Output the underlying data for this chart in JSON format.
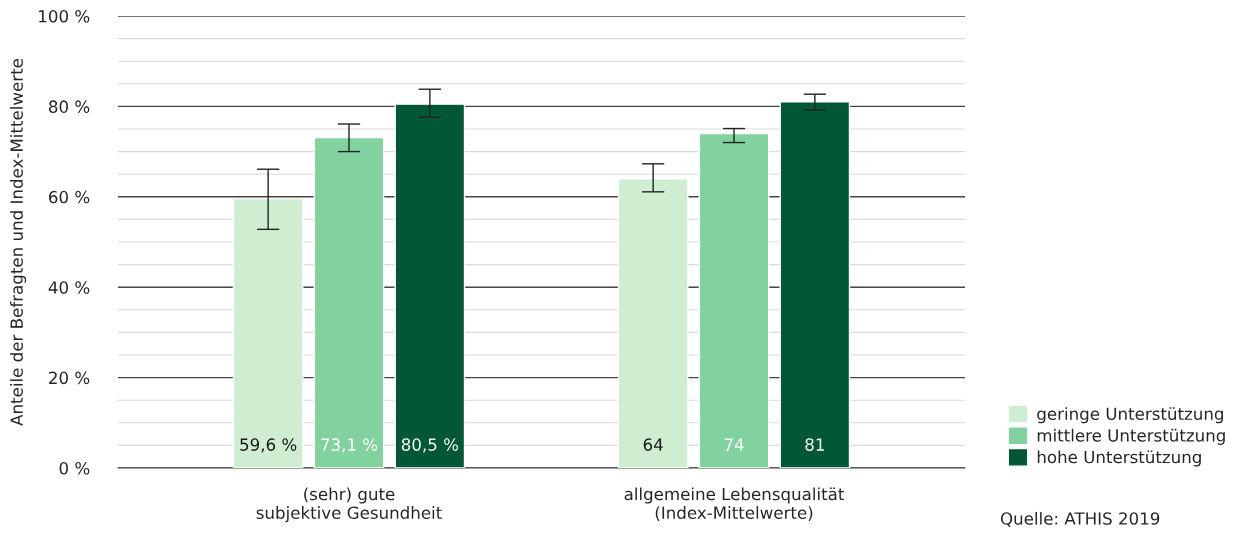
{
  "chart_data": {
    "type": "bar",
    "categories": [
      "(sehr) gute\nsubjektive Gesundheit",
      "allgemeine Lebensqualität\n(Index-Mittelwerte)"
    ],
    "ylabel": "Anteile der Befragten und Index-Mittelwerte",
    "series": [
      {
        "name": "geringe Unterstützung",
        "color": "#cfedd0",
        "values": [
          59.6,
          64
        ],
        "value_labels": [
          "59,6 %",
          "64"
        ],
        "errors": [
          [
            52.8,
            66.1
          ],
          [
            61.1,
            67.3
          ]
        ]
      },
      {
        "name": "mittlere Unterstützung",
        "color": "#82d29f",
        "values": [
          73.1,
          74
        ],
        "value_labels": [
          "73,1 %",
          "74"
        ],
        "errors": [
          [
            70,
            76.1
          ],
          [
            72,
            75.1
          ]
        ]
      },
      {
        "name": "hohe Unterstützung",
        "color": "#025737",
        "values": [
          80.5,
          81
        ],
        "value_labels": [
          "80,5 %",
          "81"
        ],
        "errors": [
          [
            77.6,
            83.8
          ],
          [
            79.2,
            82.7
          ]
        ]
      }
    ],
    "ylim": [
      0,
      100
    ],
    "yticks": [
      {
        "value": 0,
        "label": "0 %"
      },
      {
        "value": 5,
        "label": null
      },
      {
        "value": 10,
        "label": null
      },
      {
        "value": 15,
        "label": null
      },
      {
        "value": 20,
        "label": "20 %"
      },
      {
        "value": 25,
        "label": null
      },
      {
        "value": 30,
        "label": null
      },
      {
        "value": 35,
        "label": null
      },
      {
        "value": 40,
        "label": "40 %"
      },
      {
        "value": 45,
        "label": null
      },
      {
        "value": 50,
        "label": null
      },
      {
        "value": 55,
        "label": null
      },
      {
        "value": 60,
        "label": "60 %"
      },
      {
        "value": 65,
        "label": null
      },
      {
        "value": 70,
        "label": null
      },
      {
        "value": 75,
        "label": null
      },
      {
        "value": 80,
        "label": "80 %"
      },
      {
        "value": 85,
        "label": null
      },
      {
        "value": 90,
        "label": null
      },
      {
        "value": 95,
        "label": null
      },
      {
        "value": 100,
        "label": "100 %"
      }
    ],
    "grid": "y",
    "legend": "bottom right",
    "annotations": [
      "Quelle: ATHIS 2019"
    ]
  }
}
